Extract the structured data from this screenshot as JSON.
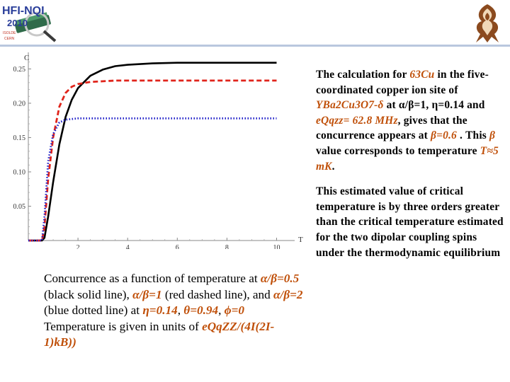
{
  "logo_left": {
    "line1": "HFI-NQI",
    "line2": "2010",
    "line3": "ISOLDE",
    "line4": "CERN"
  },
  "logo_right": {
    "icon": "ornamental-emblem-icon"
  },
  "colors": {
    "accent_text": "#c0500a",
    "topline": "#b9c7de",
    "series_black": "#000000",
    "series_red": "#e0241b",
    "series_blue": "#1e1ec8"
  },
  "chart_data": {
    "type": "line",
    "ylabel": "C",
    "xlabel": "T",
    "xlim": [
      0,
      10.5
    ],
    "ylim": [
      0,
      0.27
    ],
    "x_ticks": [
      2,
      4,
      6,
      8,
      10
    ],
    "y_ticks": [
      0.05,
      0.1,
      0.15,
      0.2,
      0.25
    ],
    "x_tick_labels": [
      "2",
      "4",
      "6",
      "8",
      "10"
    ],
    "y_tick_labels": [
      "0.05",
      "0.10",
      "0.15",
      "0.20",
      "0.25"
    ],
    "series": [
      {
        "style": "solid",
        "color": "#000000",
        "x": [
          0,
          0.55,
          0.65,
          0.8,
          1.0,
          1.25,
          1.5,
          1.75,
          2.0,
          2.5,
          3.0,
          3.5,
          4.0,
          5.0,
          6.0,
          8.0,
          10.0
        ],
        "y": [
          0,
          0,
          0.004,
          0.035,
          0.085,
          0.14,
          0.18,
          0.205,
          0.222,
          0.24,
          0.249,
          0.254,
          0.256,
          0.258,
          0.259,
          0.259,
          0.259
        ]
      },
      {
        "style": "dashed",
        "color": "#e0241b",
        "x": [
          0,
          0.55,
          0.65,
          0.8,
          1.0,
          1.25,
          1.5,
          1.75,
          2.0,
          2.5,
          3.0,
          3.5,
          4.0,
          6.0,
          8.0,
          10.0
        ],
        "y": [
          0,
          0,
          0.02,
          0.09,
          0.15,
          0.195,
          0.215,
          0.224,
          0.228,
          0.231,
          0.232,
          0.233,
          0.233,
          0.233,
          0.233,
          0.233
        ]
      },
      {
        "style": "dotted",
        "color": "#1e1ec8",
        "x": [
          0,
          0.55,
          0.65,
          0.8,
          1.0,
          1.25,
          1.5,
          2.0,
          2.5,
          3.0,
          4.0,
          6.0,
          8.0,
          10.0
        ],
        "y": [
          0,
          0,
          0.035,
          0.115,
          0.155,
          0.172,
          0.176,
          0.178,
          0.178,
          0.178,
          0.178,
          0.178,
          0.178,
          0.178
        ]
      }
    ]
  },
  "right_text": {
    "p1_1": "The calculation for ",
    "p1_cu": "63Cu",
    "p1_2": " in the five-coordinated copper ion site of ",
    "p1_compound": "YBa2Cu3O7-δ",
    "p1_3": " at α/β=1, η=0.14 and ",
    "p1_eq": "eQqzz= 62.8 MHz",
    "p1_4": ", gives that the concurrence appears at ",
    "p1_beta": "β=0.6",
    "p1_5": " . This ",
    "p1_betaword": "β",
    "p1_6": " value corresponds to temperature ",
    "p1_T": "T≈5 mK",
    "p1_7": ".",
    "p2": "This estimated value of critical temperature is by three orders greater than the critical temperature estimated for the two dipolar coupling spins under the thermodynamic equilibrium"
  },
  "caption": {
    "c1": "Concurrence as a function of temperature at ",
    "c_ab05": "α/β=0.5",
    "c2": " (black solid line), ",
    "c_ab1": "α/β=1",
    "c3": " (red dashed line), and ",
    "c_ab2": "α/β=2",
    "c4": " (blue dotted line) at ",
    "c_eta": "η=0.14",
    "c5": ", ",
    "c_theta": "θ=0.94",
    "c6": ", ",
    "c_phi": "ϕ=0",
    "c7": " Temperature is given in units of ",
    "c_units": "eQqZZ/(4I(2I-1)kB))"
  }
}
